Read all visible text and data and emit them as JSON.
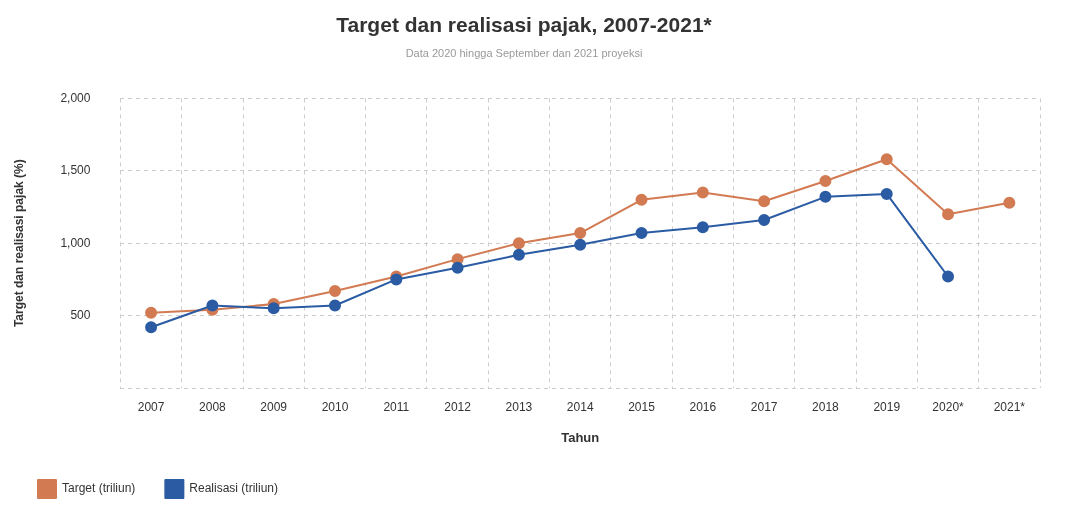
{
  "chart_data": {
    "type": "line",
    "title": "Target dan realisasi pajak, 2007-2021*",
    "subtitle": "Data 2020 hingga September dan 2021 proyeksi",
    "xlabel": "Tahun",
    "ylabel": "Target dan realisasi pajak (%)",
    "categories": [
      "2007",
      "2008",
      "2009",
      "2010",
      "2011",
      "2012",
      "2013",
      "2014",
      "2015",
      "2016",
      "2017",
      "2018",
      "2019",
      "2020*",
      "2021*"
    ],
    "series": [
      {
        "name": "Target (triliun)",
        "color": "#d27a52",
        "values": [
          520,
          540,
          580,
          670,
          770,
          890,
          1000,
          1070,
          1300,
          1350,
          1290,
          1430,
          1580,
          1200,
          1280
        ]
      },
      {
        "name": "Realisasi (triliun)",
        "color": "#2a5ba3",
        "values": [
          420,
          570,
          550,
          570,
          750,
          830,
          920,
          990,
          1070,
          1110,
          1160,
          1320,
          1340,
          770,
          null
        ]
      }
    ],
    "ylim": [
      0,
      2000
    ],
    "yticks": [
      {
        "value": 0,
        "label": null
      },
      {
        "value": 500,
        "label": "500"
      },
      {
        "value": 1000,
        "label": "1,000"
      },
      {
        "value": 1500,
        "label": "1,500"
      },
      {
        "value": 2000,
        "label": "2,000"
      }
    ],
    "grid": true,
    "legend": "bottom left",
    "marker": "circle",
    "line_style": "solid"
  }
}
